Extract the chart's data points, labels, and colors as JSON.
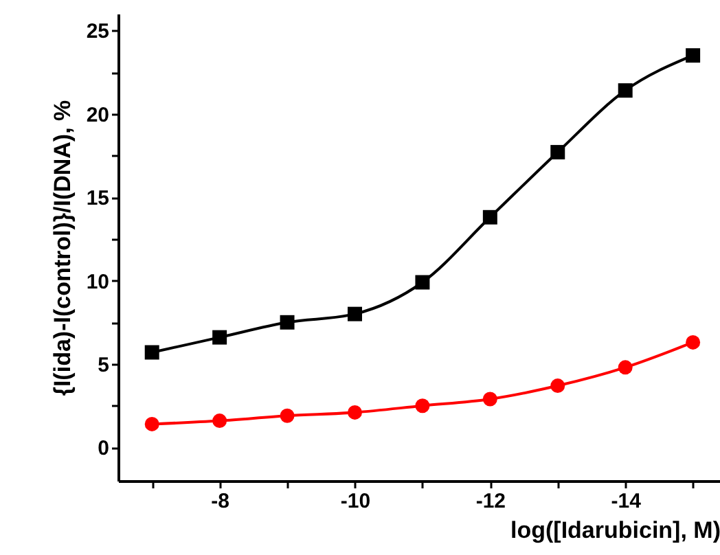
{
  "chart_data": {
    "type": "line",
    "xlabel": "log([Idarubicin], M)",
    "ylabel": "{I(ida)-I(control)}/I(DNA), %",
    "x": [
      -7,
      -8,
      -9,
      -10,
      -11,
      -12,
      -13,
      -14,
      -15
    ],
    "series": [
      {
        "color": "#000000",
        "marker": "square",
        "values": [
          5.7,
          6.6,
          7.5,
          8.0,
          9.9,
          13.8,
          17.7,
          21.4,
          23.5
        ]
      },
      {
        "color": "#ff0000",
        "marker": "circle",
        "values": [
          1.4,
          1.6,
          1.9,
          2.1,
          2.5,
          2.9,
          3.7,
          4.8,
          6.3
        ]
      }
    ],
    "xlim": [
      -6.5,
      -15.4
    ],
    "ylim": [
      -2,
      26
    ],
    "xticks": [
      {
        "value": -7,
        "label": null
      },
      -8,
      {
        "value": -9,
        "label": null
      },
      -10,
      {
        "value": -11,
        "label": null
      },
      -12,
      {
        "value": -13,
        "label": null
      },
      -14,
      {
        "value": -15,
        "label": null
      }
    ],
    "yticks": [
      0,
      {
        "value": 2.5,
        "label": null
      },
      5,
      {
        "value": 7.5,
        "label": null
      },
      10,
      {
        "value": 12.5,
        "label": null
      },
      15,
      {
        "value": 17.5,
        "label": null
      },
      20,
      {
        "value": 22.5,
        "label": null
      },
      25
    ],
    "grid": false,
    "line_style": "solid"
  }
}
